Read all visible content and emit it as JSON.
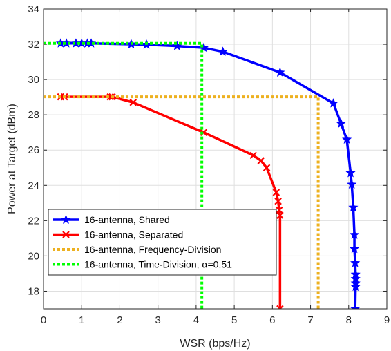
{
  "chart_data": {
    "type": "line",
    "xlabel": "WSR (bps/Hz)",
    "ylabel": "Power at Target (dBm)",
    "xlim": [
      0,
      9
    ],
    "ylim": [
      17,
      34
    ],
    "xticks": [
      "0",
      "1",
      "2",
      "3",
      "4",
      "5",
      "6",
      "7",
      "8",
      "9"
    ],
    "yticks": [
      "18",
      "20",
      "22",
      "24",
      "26",
      "28",
      "30",
      "32",
      "34"
    ],
    "grid": true,
    "legend_position": "bottom-left",
    "series": [
      {
        "name": "16-antenna, Shared",
        "color": "#0000ff",
        "style": "solid",
        "marker": "star",
        "points": [
          [
            0.45,
            32.05
          ],
          [
            0.6,
            32.05
          ],
          [
            0.85,
            32.05
          ],
          [
            1.0,
            32.05
          ],
          [
            1.15,
            32.05
          ],
          [
            1.25,
            32.05
          ],
          [
            2.3,
            32.0
          ],
          [
            2.7,
            31.98
          ],
          [
            3.5,
            31.9
          ],
          [
            4.2,
            31.8
          ],
          [
            4.7,
            31.58
          ],
          [
            6.2,
            30.4
          ],
          [
            7.6,
            28.65
          ],
          [
            7.8,
            27.5
          ],
          [
            7.95,
            26.6
          ],
          [
            8.05,
            24.7
          ],
          [
            8.08,
            24.05
          ],
          [
            8.12,
            22.75
          ],
          [
            8.15,
            21.2
          ],
          [
            8.15,
            20.4
          ],
          [
            8.17,
            19.6
          ],
          [
            8.18,
            18.95
          ],
          [
            8.18,
            18.7
          ],
          [
            8.18,
            18.45
          ],
          [
            8.18,
            18.25
          ],
          [
            8.17,
            17.0
          ]
        ]
      },
      {
        "name": "16-antenna, Separated",
        "color": "#ff0000",
        "style": "solid",
        "marker": "x",
        "points": [
          [
            0.45,
            29.02
          ],
          [
            0.55,
            29.02
          ],
          [
            1.75,
            29.02
          ],
          [
            1.8,
            29.02
          ],
          [
            2.35,
            28.7
          ],
          [
            4.2,
            27.0
          ],
          [
            5.5,
            25.7
          ],
          [
            5.7,
            25.4
          ],
          [
            5.85,
            25.0
          ],
          [
            6.1,
            23.6
          ],
          [
            6.15,
            23.1
          ],
          [
            6.18,
            22.6
          ],
          [
            6.2,
            22.3
          ],
          [
            6.2,
            17.0
          ]
        ]
      },
      {
        "name": "16-antenna, Frequency-Division",
        "color": "#edb120",
        "style": "dotted",
        "marker": "none",
        "points": [
          [
            0,
            29.02
          ],
          [
            7.2,
            29.02
          ],
          [
            7.2,
            17.0
          ]
        ]
      },
      {
        "name": "16-antenna, Time-Division, α=0.51",
        "color": "#00ff00",
        "style": "dotted",
        "marker": "none",
        "points": [
          [
            0,
            32.05
          ],
          [
            4.15,
            32.05
          ],
          [
            4.15,
            17.0
          ]
        ]
      }
    ]
  }
}
